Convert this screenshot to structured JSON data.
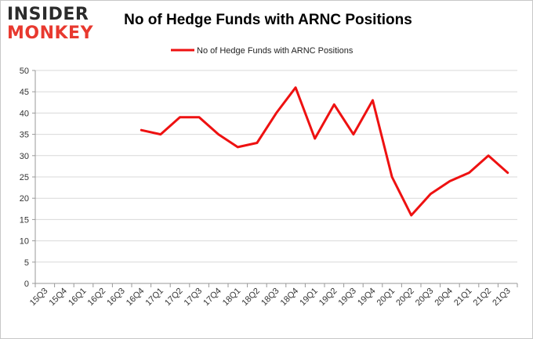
{
  "logo": {
    "line1": "INSIDER",
    "line2": "MONKEY",
    "colors": {
      "line1": "#2b2b2b",
      "line2": "#e8392f"
    }
  },
  "chart_data": {
    "type": "line",
    "title": "No of Hedge Funds with ARNC Positions",
    "xlabel": "",
    "ylabel": "",
    "categories": [
      "15Q3",
      "15Q4",
      "16Q1",
      "16Q2",
      "16Q3",
      "16Q4",
      "17Q1",
      "17Q2",
      "17Q3",
      "17Q4",
      "18Q1",
      "18Q2",
      "18Q3",
      "18Q4",
      "19Q1",
      "19Q2",
      "19Q3",
      "19Q4",
      "20Q1",
      "20Q2",
      "20Q3",
      "20Q4",
      "21Q1",
      "21Q2",
      "21Q3"
    ],
    "series": [
      {
        "name": "No of Hedge Funds with ARNC Positions",
        "color": "#ee1111",
        "values": [
          null,
          null,
          null,
          null,
          null,
          36,
          35,
          39,
          39,
          35,
          32,
          33,
          40,
          46,
          34,
          42,
          35,
          43,
          25,
          16,
          21,
          24,
          26,
          30,
          26
        ]
      }
    ],
    "ylim": [
      0,
      50
    ],
    "yticks": [
      0,
      5,
      10,
      15,
      20,
      25,
      30,
      35,
      40,
      45,
      50
    ],
    "grid": true,
    "legend_position": "top-center"
  }
}
